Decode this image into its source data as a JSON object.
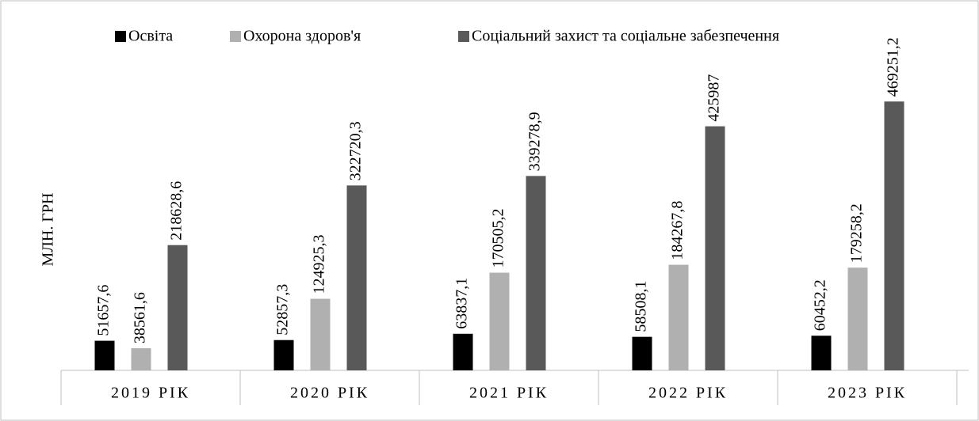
{
  "chart_data": {
    "type": "bar",
    "y_label": "МЛН. ГРН",
    "categories": [
      "2019 РІК",
      "2020 РІК",
      "2021 РІК",
      "2022 РІК",
      "2023 РІК"
    ],
    "ylim": [
      0,
      500000
    ],
    "series": [
      {
        "name": "Освіта",
        "color": "#000000",
        "values": [
          51657.6,
          52857.3,
          63837.1,
          58508.1,
          60452.2
        ],
        "value_labels": [
          "51657,6",
          "52857,3",
          "63837,1",
          "58508,1",
          "60452,2"
        ]
      },
      {
        "name": "Охорона здоров'я",
        "color": "#b0b0b0",
        "values": [
          38561.6,
          124925.3,
          170505.2,
          184267.8,
          179258.2
        ],
        "value_labels": [
          "38561,6",
          "124925,3",
          "170505,2",
          "184267,8",
          "179258,2"
        ]
      },
      {
        "name": "Соціальний захист та соціальне забезпечення",
        "color": "#595959",
        "values": [
          218628.6,
          322720.3,
          339278.9,
          425987,
          469251.2
        ],
        "value_labels": [
          "218628,6",
          "322720,3",
          "339278,9",
          "425987",
          "469251,2"
        ]
      }
    ]
  }
}
